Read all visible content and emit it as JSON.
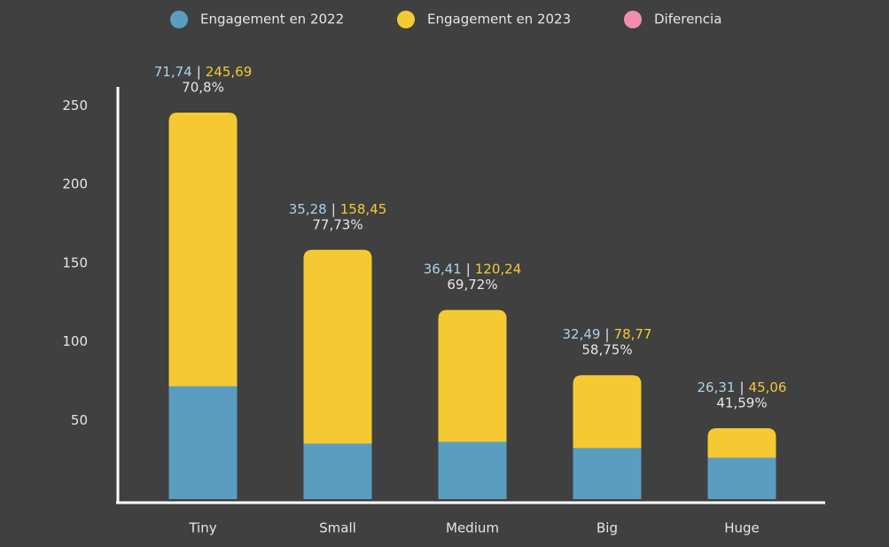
{
  "chart_data": {
    "type": "bar",
    "categories": [
      "Tiny",
      "Small",
      "Medium",
      "Big",
      "Huge"
    ],
    "series": [
      {
        "name": "Engagement en 2022",
        "color": "#5a9dc1",
        "label_color": "#a9d3ec",
        "values": [
          71.74,
          35.28,
          36.41,
          32.49,
          26.31
        ],
        "value_labels": [
          "71,74",
          "35,28",
          "36,41",
          "32,49",
          "26,31"
        ]
      },
      {
        "name": "Engagement en 2023",
        "color": "#f5c932",
        "label_color": "#f5c932",
        "values": [
          245.69,
          158.45,
          120.24,
          78.77,
          45.06
        ],
        "value_labels": [
          "245,69",
          "158,45",
          "120,24",
          "78,77",
          "45,06"
        ]
      },
      {
        "name": "Diferencia",
        "color": "#f38db0",
        "label_color": "#f38db0",
        "values": [
          70.8,
          77.73,
          69.72,
          58.75,
          41.59
        ],
        "value_labels": [
          "70,8%",
          "77,73%",
          "69,72%",
          "58,75%",
          "41,59%"
        ]
      }
    ],
    "separator": "|",
    "ylim": [
      0,
      262
    ],
    "yticks": [
      50,
      100,
      150,
      200,
      250
    ],
    "background": "#404040"
  }
}
